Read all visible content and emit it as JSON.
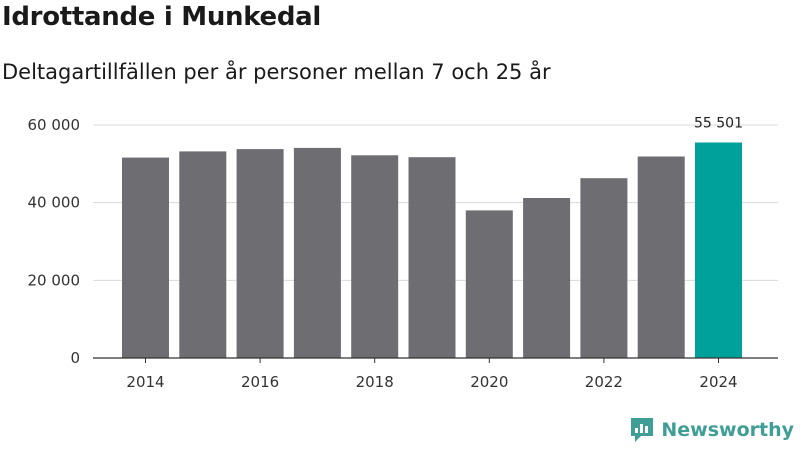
{
  "title": "Idrottande i Munkedal",
  "subtitle": "Deltagartillfällen per år personer mellan 7 och 25 år",
  "brand": {
    "name": "Newsworthy"
  },
  "colors": {
    "bar": "#6e6d72",
    "highlight": "#00a19a",
    "grid": "#d9d9d9",
    "axis": "#333333"
  },
  "chart_data": {
    "type": "bar",
    "categories": [
      "2014",
      "2015",
      "2016",
      "2017",
      "2018",
      "2019",
      "2020",
      "2021",
      "2022",
      "2023",
      "2024"
    ],
    "values": [
      51600,
      53200,
      53800,
      54100,
      52200,
      51700,
      38000,
      41200,
      46300,
      51900,
      55501
    ],
    "highlight_index": 10,
    "x_tick_labels": [
      "2014",
      "2016",
      "2018",
      "2020",
      "2022",
      "2024"
    ],
    "y_ticks": [
      0,
      20000,
      40000,
      60000
    ],
    "y_tick_labels": [
      "0",
      "20 000",
      "40 000",
      "60 000"
    ],
    "ylim": [
      0,
      60000
    ],
    "data_labels": [
      {
        "index": 10,
        "text": "55 501"
      }
    ],
    "xlabel": "",
    "ylabel": "",
    "grid": true
  }
}
